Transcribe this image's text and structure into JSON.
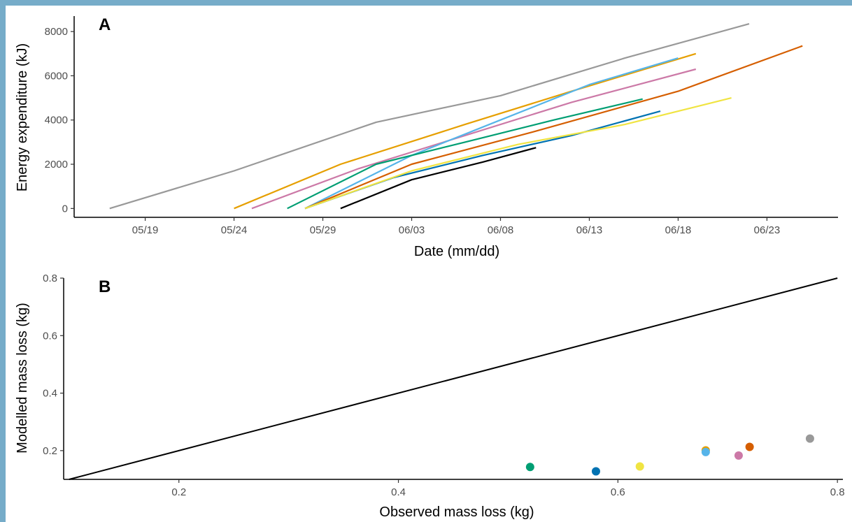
{
  "colors": {
    "frame": "#76acc9",
    "background": "#ffffff",
    "axis": "#000000",
    "tick_text": "#4d4d4d"
  },
  "chart_data": [
    {
      "panel": "A",
      "type": "line",
      "xlabel": "Date (mm/dd)",
      "ylabel": "Energy expenditure (kJ)",
      "x_ticks": [
        "05/19",
        "05/24",
        "05/29",
        "06/03",
        "06/08",
        "06/13",
        "06/18",
        "06/23"
      ],
      "y_ticks": [
        "0",
        "2000",
        "4000",
        "6000",
        "8000"
      ],
      "xlim": [
        "05/15",
        "06/27"
      ],
      "ylim": [
        -400,
        8700
      ],
      "grid": false,
      "legend": "none",
      "series": [
        {
          "color": "#999999",
          "x": [
            "05/17",
            "05/24",
            "06/01",
            "06/08",
            "06/15",
            "06/22"
          ],
          "y": [
            0,
            1700,
            3900,
            5100,
            6800,
            8350
          ]
        },
        {
          "color": "#E69F00",
          "x": [
            "05/24",
            "05/30",
            "06/06",
            "06/12",
            "06/19"
          ],
          "y": [
            0,
            2000,
            3800,
            5300,
            7000
          ]
        },
        {
          "color": "#CC79A7",
          "x": [
            "05/25",
            "05/31",
            "06/06",
            "06/12",
            "06/19"
          ],
          "y": [
            0,
            1800,
            3300,
            4800,
            6300
          ]
        },
        {
          "color": "#56B4E9",
          "x": [
            "05/28",
            "06/03",
            "06/08",
            "06/13",
            "06/18"
          ],
          "y": [
            0,
            2400,
            4000,
            5600,
            6800
          ]
        },
        {
          "color": "#009E73",
          "x": [
            "05/27",
            "06/01",
            "06/06",
            "06/11",
            "06/16"
          ],
          "y": [
            0,
            2000,
            3000,
            4000,
            4950
          ]
        },
        {
          "color": "#D55E00",
          "x": [
            "05/28",
            "06/03",
            "06/10",
            "06/18",
            "06/25"
          ],
          "y": [
            0,
            2000,
            3500,
            5300,
            7350
          ]
        },
        {
          "color": "#0072B2",
          "x": [
            "05/28",
            "06/02",
            "06/07",
            "06/12",
            "06/17"
          ],
          "y": [
            0,
            1400,
            2400,
            3300,
            4400
          ]
        },
        {
          "color": "#F0E442",
          "x": [
            "05/28",
            "06/03",
            "06/09",
            "06/15",
            "06/21"
          ],
          "y": [
            0,
            1700,
            2900,
            3800,
            5000
          ]
        },
        {
          "color": "#000000",
          "x": [
            "05/30",
            "06/03",
            "06/07",
            "06/10"
          ],
          "y": [
            0,
            1300,
            2100,
            2750
          ]
        }
      ]
    },
    {
      "panel": "B",
      "type": "scatter",
      "xlabel": "Observed mass loss (kg)",
      "ylabel": "Modelled mass loss (kg)",
      "x_ticks": [
        "0.2",
        "0.4",
        "0.6",
        "0.8"
      ],
      "y_ticks": [
        "0.2",
        "0.4",
        "0.6",
        "0.8"
      ],
      "xlim": [
        0.095,
        0.805
      ],
      "ylim": [
        0.1,
        0.8
      ],
      "reference_line": {
        "from": [
          0.1,
          0.1
        ],
        "to": [
          0.8,
          0.8
        ]
      },
      "grid": false,
      "legend": "none",
      "points": [
        {
          "x": 0.52,
          "y": 0.143,
          "color": "#009E73"
        },
        {
          "x": 0.58,
          "y": 0.128,
          "color": "#0072B2"
        },
        {
          "x": 0.62,
          "y": 0.145,
          "color": "#F0E442"
        },
        {
          "x": 0.68,
          "y": 0.201,
          "color": "#E69F00"
        },
        {
          "x": 0.68,
          "y": 0.195,
          "color": "#56B4E9"
        },
        {
          "x": 0.71,
          "y": 0.183,
          "color": "#CC79A7"
        },
        {
          "x": 0.72,
          "y": 0.213,
          "color": "#D55E00"
        },
        {
          "x": 0.775,
          "y": 0.242,
          "color": "#999999"
        }
      ]
    }
  ]
}
